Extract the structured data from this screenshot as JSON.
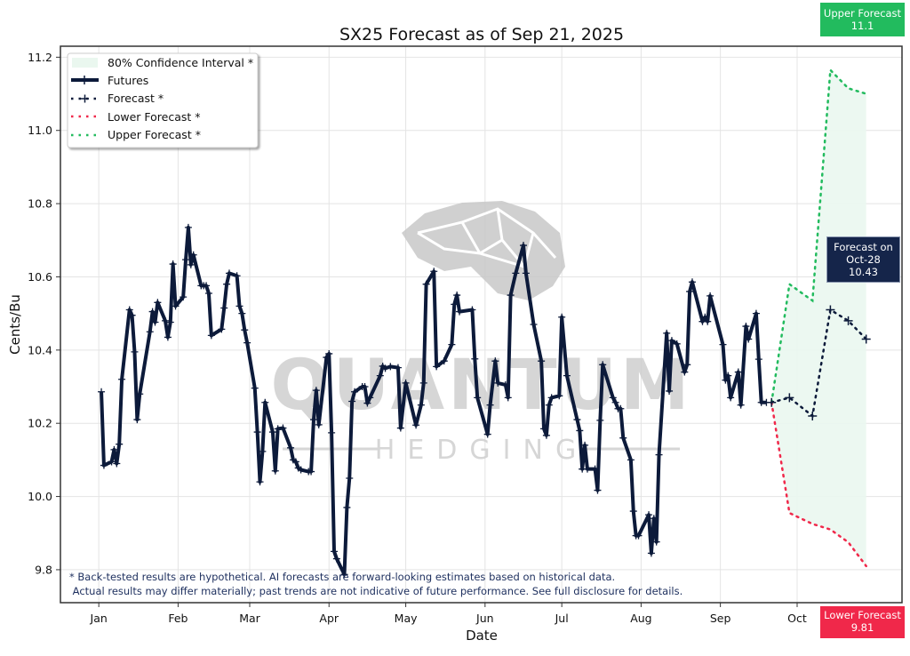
{
  "chart_data": {
    "type": "line",
    "title": "SX25 Forecast as of Sep 21, 2025",
    "xlabel": "Date",
    "ylabel": "Cents/Bu",
    "xlim": [
      "2024-12-17",
      "2025-11-11"
    ],
    "ylim": [
      9.71,
      11.23
    ],
    "grid": true,
    "legend_position": "top-left",
    "x_ticks": [
      {
        "date": "2025-01-01",
        "label": "Jan"
      },
      {
        "date": "2025-02-01",
        "label": "Feb"
      },
      {
        "date": "2025-03-01",
        "label": "Mar"
      },
      {
        "date": "2025-04-01",
        "label": "Apr"
      },
      {
        "date": "2025-05-01",
        "label": "May"
      },
      {
        "date": "2025-06-01",
        "label": "Jun"
      },
      {
        "date": "2025-07-01",
        "label": "Jul"
      },
      {
        "date": "2025-08-01",
        "label": "Aug"
      },
      {
        "date": "2025-09-01",
        "label": "Sep"
      },
      {
        "date": "2025-10-01",
        "label": "Oct"
      }
    ],
    "y_ticks": [
      9.8,
      10.0,
      10.2,
      10.4,
      10.6,
      10.8,
      11.0,
      11.2
    ],
    "y_tick_labels": [
      "9.8",
      "10.0",
      "10.2",
      "10.4",
      "10.6",
      "10.8",
      "11.0",
      "11.2"
    ],
    "legend": [
      "80% Confidence Interval *",
      "Futures",
      "Forecast *",
      "Lower Forecast *",
      "Upper Forecast *"
    ],
    "colors": {
      "futures": "#0c1a3a",
      "forecast": "#0c1a3a",
      "lower": "#f0284a",
      "upper": "#22bb5e",
      "ci_fill": "#eaf7ef"
    },
    "futures": [
      [
        "2025-01-02",
        10.286
      ],
      [
        "2025-01-03",
        10.085
      ],
      [
        "2025-01-06",
        10.095
      ],
      [
        "2025-01-07",
        10.128
      ],
      [
        "2025-01-08",
        10.09
      ],
      [
        "2025-01-09",
        10.143
      ],
      [
        "2025-01-10",
        10.32
      ],
      [
        "2025-01-13",
        10.51
      ],
      [
        "2025-01-14",
        10.495
      ],
      [
        "2025-01-15",
        10.395
      ],
      [
        "2025-01-16",
        10.21
      ],
      [
        "2025-01-17",
        10.28
      ],
      [
        "2025-01-21",
        10.45
      ],
      [
        "2025-01-22",
        10.505
      ],
      [
        "2025-01-23",
        10.476
      ],
      [
        "2025-01-24",
        10.53
      ],
      [
        "2025-01-27",
        10.48
      ],
      [
        "2025-01-28",
        10.435
      ],
      [
        "2025-01-29",
        10.476
      ],
      [
        "2025-01-30",
        10.635
      ],
      [
        "2025-01-31",
        10.52
      ],
      [
        "2025-02-03",
        10.545
      ],
      [
        "2025-02-04",
        10.647
      ],
      [
        "2025-02-05",
        10.735
      ],
      [
        "2025-02-06",
        10.633
      ],
      [
        "2025-02-07",
        10.66
      ],
      [
        "2025-02-10",
        10.576
      ],
      [
        "2025-02-11",
        10.576
      ],
      [
        "2025-02-12",
        10.576
      ],
      [
        "2025-02-13",
        10.555
      ],
      [
        "2025-02-14",
        10.44
      ],
      [
        "2025-02-18",
        10.457
      ],
      [
        "2025-02-19",
        10.515
      ],
      [
        "2025-02-20",
        10.58
      ],
      [
        "2025-02-21",
        10.61
      ],
      [
        "2025-02-24",
        10.603
      ],
      [
        "2025-02-25",
        10.52
      ],
      [
        "2025-02-26",
        10.5
      ],
      [
        "2025-02-27",
        10.455
      ],
      [
        "2025-02-28",
        10.42
      ],
      [
        "2025-03-03",
        10.296
      ],
      [
        "2025-03-04",
        10.176
      ],
      [
        "2025-03-05",
        10.04
      ],
      [
        "2025-03-06",
        10.123
      ],
      [
        "2025-03-07",
        10.257
      ],
      [
        "2025-03-10",
        10.176
      ],
      [
        "2025-03-11",
        10.07
      ],
      [
        "2025-03-12",
        10.185
      ],
      [
        "2025-03-14",
        10.187
      ],
      [
        "2025-03-17",
        10.133
      ],
      [
        "2025-03-18",
        10.1
      ],
      [
        "2025-03-19",
        10.095
      ],
      [
        "2025-03-20",
        10.078
      ],
      [
        "2025-03-21",
        10.073
      ],
      [
        "2025-03-24",
        10.068
      ],
      [
        "2025-03-25",
        10.068
      ],
      [
        "2025-03-26",
        10.21
      ],
      [
        "2025-03-27",
        10.29
      ],
      [
        "2025-03-28",
        10.196
      ],
      [
        "2025-03-31",
        10.38
      ],
      [
        "2025-04-01",
        10.39
      ],
      [
        "2025-04-02",
        10.174
      ],
      [
        "2025-04-03",
        9.85
      ],
      [
        "2025-04-04",
        9.83
      ],
      [
        "2025-04-07",
        9.787
      ],
      [
        "2025-04-08",
        9.97
      ],
      [
        "2025-04-09",
        10.05
      ],
      [
        "2025-04-10",
        10.26
      ],
      [
        "2025-04-11",
        10.286
      ],
      [
        "2025-04-14",
        10.3
      ],
      [
        "2025-04-15",
        10.3
      ],
      [
        "2025-04-16",
        10.255
      ],
      [
        "2025-04-17",
        10.27
      ],
      [
        "2025-04-21",
        10.33
      ],
      [
        "2025-04-22",
        10.356
      ],
      [
        "2025-04-23",
        10.35
      ],
      [
        "2025-04-25",
        10.355
      ],
      [
        "2025-04-28",
        10.352
      ],
      [
        "2025-04-29",
        10.187
      ],
      [
        "2025-05-01",
        10.31
      ],
      [
        "2025-05-05",
        10.195
      ],
      [
        "2025-05-07",
        10.25
      ],
      [
        "2025-05-08",
        10.31
      ],
      [
        "2025-05-09",
        10.58
      ],
      [
        "2025-05-12",
        10.615
      ],
      [
        "2025-05-13",
        10.355
      ],
      [
        "2025-05-16",
        10.37
      ],
      [
        "2025-05-19",
        10.415
      ],
      [
        "2025-05-20",
        10.525
      ],
      [
        "2025-05-21",
        10.55
      ],
      [
        "2025-05-22",
        10.505
      ],
      [
        "2025-05-27",
        10.51
      ],
      [
        "2025-05-28",
        10.376
      ],
      [
        "2025-05-29",
        10.27
      ],
      [
        "2025-06-02",
        10.17
      ],
      [
        "2025-06-03",
        10.25
      ],
      [
        "2025-06-05",
        10.37
      ],
      [
        "2025-06-06",
        10.31
      ],
      [
        "2025-06-09",
        10.305
      ],
      [
        "2025-06-10",
        10.27
      ],
      [
        "2025-06-11",
        10.55
      ],
      [
        "2025-06-13",
        10.61
      ],
      [
        "2025-06-16",
        10.686
      ],
      [
        "2025-06-17",
        10.61
      ],
      [
        "2025-06-20",
        10.47
      ],
      [
        "2025-06-23",
        10.37
      ],
      [
        "2025-06-24",
        10.185
      ],
      [
        "2025-06-25",
        10.167
      ],
      [
        "2025-06-26",
        10.25
      ],
      [
        "2025-06-27",
        10.27
      ],
      [
        "2025-06-30",
        10.275
      ],
      [
        "2025-07-01",
        10.49
      ],
      [
        "2025-07-03",
        10.33
      ],
      [
        "2025-07-07",
        10.21
      ],
      [
        "2025-07-08",
        10.18
      ],
      [
        "2025-07-09",
        10.075
      ],
      [
        "2025-07-10",
        10.14
      ],
      [
        "2025-07-11",
        10.075
      ],
      [
        "2025-07-14",
        10.075
      ],
      [
        "2025-07-15",
        10.017
      ],
      [
        "2025-07-16",
        10.208
      ],
      [
        "2025-07-17",
        10.36
      ],
      [
        "2025-07-21",
        10.27
      ],
      [
        "2025-07-22",
        10.257
      ],
      [
        "2025-07-23",
        10.24
      ],
      [
        "2025-07-24",
        10.24
      ],
      [
        "2025-07-25",
        10.16
      ],
      [
        "2025-07-28",
        10.1
      ],
      [
        "2025-07-29",
        9.96
      ],
      [
        "2025-07-30",
        9.893
      ],
      [
        "2025-07-31",
        9.893
      ],
      [
        "2025-08-04",
        9.95
      ],
      [
        "2025-08-05",
        9.845
      ],
      [
        "2025-08-06",
        9.94
      ],
      [
        "2025-08-07",
        9.876
      ],
      [
        "2025-08-08",
        10.114
      ],
      [
        "2025-08-11",
        10.446
      ],
      [
        "2025-08-12",
        10.288
      ],
      [
        "2025-08-13",
        10.426
      ],
      [
        "2025-08-15",
        10.417
      ],
      [
        "2025-08-18",
        10.34
      ],
      [
        "2025-08-19",
        10.36
      ],
      [
        "2025-08-20",
        10.56
      ],
      [
        "2025-08-21",
        10.586
      ],
      [
        "2025-08-25",
        10.478
      ],
      [
        "2025-08-26",
        10.49
      ],
      [
        "2025-08-27",
        10.478
      ],
      [
        "2025-08-28",
        10.548
      ],
      [
        "2025-09-02",
        10.415
      ],
      [
        "2025-09-03",
        10.318
      ],
      [
        "2025-09-04",
        10.33
      ],
      [
        "2025-09-05",
        10.27
      ],
      [
        "2025-09-08",
        10.34
      ],
      [
        "2025-09-09",
        10.25
      ],
      [
        "2025-09-11",
        10.465
      ],
      [
        "2025-09-12",
        10.43
      ],
      [
        "2025-09-15",
        10.5
      ],
      [
        "2025-09-16",
        10.375
      ],
      [
        "2025-09-17",
        10.257
      ],
      [
        "2025-09-19",
        10.257
      ]
    ],
    "forecast": [
      [
        "2025-09-21",
        10.257
      ],
      [
        "2025-09-28",
        10.27
      ],
      [
        "2025-10-07",
        10.22
      ],
      [
        "2025-10-14",
        10.51
      ],
      [
        "2025-10-21",
        10.48
      ],
      [
        "2025-10-28",
        10.43
      ]
    ],
    "upper": [
      [
        "2025-09-21",
        10.257
      ],
      [
        "2025-09-28",
        10.58
      ],
      [
        "2025-10-07",
        10.535
      ],
      [
        "2025-10-14",
        11.165
      ],
      [
        "2025-10-21",
        11.115
      ],
      [
        "2025-10-28",
        11.1
      ]
    ],
    "lower": [
      [
        "2025-09-21",
        10.257
      ],
      [
        "2025-09-28",
        9.955
      ],
      [
        "2025-10-07",
        9.925
      ],
      [
        "2025-10-14",
        9.91
      ],
      [
        "2025-10-21",
        9.875
      ],
      [
        "2025-10-28",
        9.81
      ]
    ],
    "annotations": {
      "upper_badge": {
        "label": "Upper Forecast",
        "value": "11.1",
        "color": "#22bb5e"
      },
      "lower_badge": {
        "label": "Lower Forecast",
        "value": "9.81",
        "color": "#f0284a"
      },
      "forecast_box": {
        "line1": "Forecast on",
        "line2": "Oct-28",
        "value": "10.43",
        "color": "#15254a"
      }
    },
    "disclaimer": [
      "* Back-tested results are hypothetical. AI forecasts are forward-looking estimates based on historical data.",
      " Actual results may differ materially; past trends are not indicative of future performance. See full disclosure for details."
    ]
  },
  "watermark": {
    "line1": "QUANTUM",
    "line2": "HEDGING"
  }
}
